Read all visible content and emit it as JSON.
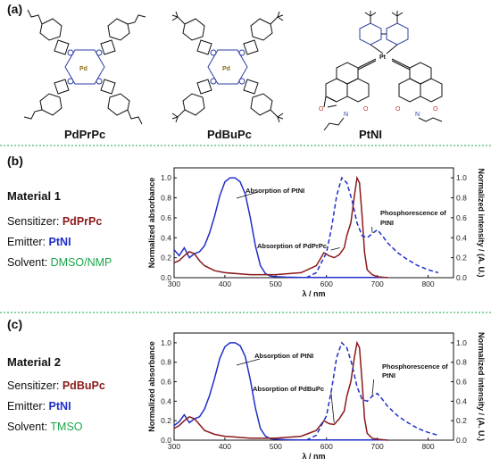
{
  "panels": {
    "a": {
      "label": "(a)"
    },
    "b": {
      "label": "(b)"
    },
    "c": {
      "label": "(c)"
    }
  },
  "molecules": [
    {
      "name": "PdPrPc",
      "metal": "Pd"
    },
    {
      "name": "PdBuPc",
      "metal": "Pd"
    },
    {
      "name": "PtNI",
      "metal": "Pt"
    }
  ],
  "materials": [
    {
      "title": "Material 1",
      "sensitizer_label": "Sensitizer: ",
      "sensitizer": "PdPrPc",
      "emitter_label": "Emitter: ",
      "emitter": "PtNI",
      "solvent_label": "Solvent: ",
      "solvent": "DMSO/NMP"
    },
    {
      "title": "Material 2",
      "sensitizer_label": "Sensitizer: ",
      "sensitizer": "PdBuPc",
      "emitter_label": "Emitter: ",
      "emitter": "PtNI",
      "solvent_label": "Solvent: ",
      "solvent": "TMSO"
    }
  ],
  "colors": {
    "pc_absorption": "#8b1a1a",
    "ptni_absorption": "#1f2fc9",
    "ptni_phosphorescence": "#1f2fc9",
    "solvent_text": "#1aa64a",
    "divider": "#1aa64a",
    "sensitizer_text": "#8b1a1a",
    "emitter_text": "#1f2fc9"
  },
  "chart_data": [
    {
      "type": "line",
      "xlabel": "λ / nm",
      "ylabel_left": "Normalized absorbance",
      "ylabel_right": "Normalized intensity / (A. U.)",
      "xlim": [
        300,
        850
      ],
      "ylim": [
        0,
        1.1
      ],
      "xticks": [
        "300",
        "400",
        "500",
        "600",
        "700",
        "800"
      ],
      "yticks": [
        "0.0",
        "0.2",
        "0.4",
        "0.6",
        "0.8",
        "1.0"
      ],
      "annotations": [
        "Absorption of PtNI",
        "Absorption of PdPrPc",
        "Phosphorescence of",
        "PtNI"
      ],
      "series": [
        {
          "key": "ptni_abs",
          "style": "solid",
          "x": [
            300,
            310,
            320,
            330,
            340,
            350,
            360,
            370,
            380,
            390,
            400,
            410,
            420,
            430,
            440,
            450,
            460,
            470,
            480,
            490,
            500,
            520,
            550,
            600,
            650,
            700,
            720
          ],
          "y": [
            0.28,
            0.22,
            0.3,
            0.2,
            0.24,
            0.26,
            0.32,
            0.45,
            0.62,
            0.82,
            0.96,
            1.0,
            1.0,
            0.96,
            0.84,
            0.6,
            0.32,
            0.12,
            0.04,
            0.015,
            0.01,
            0.005,
            0.003,
            0.003,
            0.003,
            0.003,
            0.003
          ]
        },
        {
          "key": "pc_abs",
          "style": "solid",
          "x": [
            300,
            310,
            320,
            330,
            340,
            350,
            360,
            380,
            400,
            450,
            500,
            550,
            580,
            595,
            605,
            615,
            625,
            635,
            640,
            648,
            655,
            660,
            665,
            670,
            675,
            680,
            690,
            700,
            720
          ],
          "y": [
            0.15,
            0.17,
            0.22,
            0.26,
            0.24,
            0.17,
            0.12,
            0.07,
            0.05,
            0.03,
            0.03,
            0.05,
            0.12,
            0.25,
            0.22,
            0.2,
            0.23,
            0.3,
            0.42,
            0.55,
            0.82,
            1.0,
            0.95,
            0.62,
            0.25,
            0.08,
            0.03,
            0.01,
            0.0
          ]
        },
        {
          "key": "ptni_phos",
          "style": "dashed",
          "x": [
            560,
            580,
            600,
            610,
            620,
            630,
            640,
            650,
            660,
            670,
            680,
            690,
            700,
            710,
            720,
            740,
            760,
            780,
            800,
            820
          ],
          "y": [
            0.0,
            0.05,
            0.25,
            0.5,
            0.82,
            1.0,
            0.95,
            0.78,
            0.55,
            0.42,
            0.4,
            0.44,
            0.48,
            0.42,
            0.35,
            0.25,
            0.18,
            0.12,
            0.08,
            0.05
          ]
        }
      ]
    },
    {
      "type": "line",
      "xlabel": "λ / nm",
      "ylabel_left": "Normalized absorbance",
      "ylabel_right": "Normalized intensity / (A. U.)",
      "xlim": [
        300,
        850
      ],
      "ylim": [
        0,
        1.1
      ],
      "xticks": [
        "300",
        "400",
        "500",
        "600",
        "700",
        "800"
      ],
      "yticks": [
        "0.0",
        "0.2",
        "0.4",
        "0.6",
        "0.8",
        "1.0"
      ],
      "annotations": [
        "Absorption of PtNI",
        "Absorption of PdBuPc",
        "Phosphorescence of",
        "PtNI"
      ],
      "series": [
        {
          "key": "ptni_abs",
          "style": "solid",
          "x": [
            300,
            310,
            320,
            330,
            340,
            350,
            360,
            370,
            380,
            390,
            400,
            410,
            420,
            430,
            440,
            450,
            460,
            470,
            480,
            490,
            500,
            520,
            550,
            600,
            650,
            700,
            720
          ],
          "y": [
            0.15,
            0.19,
            0.26,
            0.18,
            0.22,
            0.24,
            0.32,
            0.46,
            0.64,
            0.84,
            0.96,
            1.0,
            1.0,
            0.97,
            0.86,
            0.62,
            0.33,
            0.12,
            0.04,
            0.015,
            0.01,
            0.005,
            0.003,
            0.003,
            0.003,
            0.003,
            0.003
          ]
        },
        {
          "key": "pc_abs",
          "style": "solid",
          "x": [
            300,
            310,
            320,
            330,
            340,
            350,
            360,
            380,
            400,
            450,
            500,
            550,
            580,
            595,
            605,
            615,
            625,
            635,
            640,
            648,
            655,
            660,
            665,
            670,
            675,
            680,
            690,
            700,
            720
          ],
          "y": [
            0.12,
            0.15,
            0.2,
            0.24,
            0.22,
            0.16,
            0.1,
            0.06,
            0.04,
            0.02,
            0.02,
            0.04,
            0.1,
            0.2,
            0.17,
            0.16,
            0.22,
            0.3,
            0.45,
            0.6,
            0.85,
            1.0,
            0.95,
            0.6,
            0.22,
            0.07,
            0.02,
            0.01,
            0.0
          ]
        },
        {
          "key": "ptni_phos",
          "style": "dashed",
          "x": [
            560,
            580,
            600,
            610,
            620,
            630,
            640,
            650,
            660,
            670,
            680,
            690,
            700,
            710,
            720,
            740,
            760,
            780,
            800,
            820
          ],
          "y": [
            0.0,
            0.05,
            0.25,
            0.52,
            0.85,
            1.0,
            0.95,
            0.78,
            0.55,
            0.42,
            0.4,
            0.45,
            0.48,
            0.42,
            0.35,
            0.25,
            0.18,
            0.12,
            0.08,
            0.05
          ]
        }
      ]
    }
  ]
}
